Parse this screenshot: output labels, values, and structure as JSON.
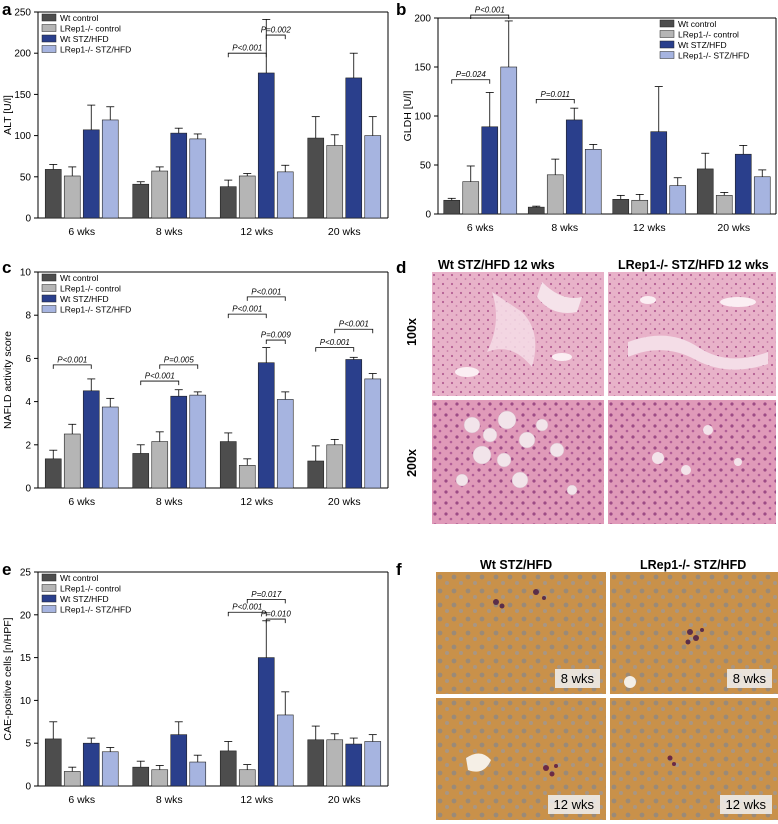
{
  "panels": {
    "a": "a",
    "b": "b",
    "c": "c",
    "d": "d",
    "e": "e",
    "f": "f"
  },
  "colors": {
    "wt_control": "#4d4d4d",
    "lrep_control": "#b5b5b5",
    "wt_stz": "#2a3f8c",
    "lrep_stz": "#a6b4e0",
    "he_bg": "#e9b8cc",
    "cae_bg": "#c99550"
  },
  "chart_data": [
    {
      "id": "a",
      "type": "bar",
      "categories": [
        "6 wks",
        "8 wks",
        "12 wks",
        "20 wks"
      ],
      "ylabel": "ALT [U/l]",
      "ylim": [
        0,
        250
      ],
      "yticks": [
        "0",
        "50",
        "100",
        "150",
        "200",
        "250"
      ],
      "legend_position": "top-left",
      "series": [
        {
          "name": "Wt control",
          "values": [
            59,
            41,
            38,
            97
          ],
          "err": [
            6,
            3,
            8,
            26
          ]
        },
        {
          "name": "LRep1-/- control",
          "values": [
            51,
            57,
            51,
            88
          ],
          "err": [
            11,
            5,
            3,
            13
          ]
        },
        {
          "name": "Wt STZ/HFD",
          "values": [
            107,
            103,
            176,
            170
          ],
          "err": [
            30,
            6,
            65,
            30
          ]
        },
        {
          "name": "LRep1-/- STZ/HFD",
          "values": [
            119,
            96,
            56,
            100
          ],
          "err": [
            16,
            6,
            8,
            23
          ]
        }
      ],
      "annotations": [
        {
          "text": "P<0.001",
          "cat": 2,
          "from": 0,
          "to": 2,
          "y": 200
        },
        {
          "text": "P=0.002",
          "cat": 2,
          "from": 2,
          "to": 3,
          "y": 222
        }
      ]
    },
    {
      "id": "b",
      "type": "bar",
      "categories": [
        "6 wks",
        "8 wks",
        "12 wks",
        "20 wks"
      ],
      "ylabel": "GLDH [U/l]",
      "ylim": [
        0,
        200
      ],
      "yticks": [
        "0",
        "50",
        "100",
        "150",
        "200"
      ],
      "legend_position": "top-right",
      "series": [
        {
          "name": "Wt control",
          "values": [
            14,
            7,
            15,
            46
          ],
          "err": [
            2,
            1,
            4,
            16
          ]
        },
        {
          "name": "LRep1-/- control",
          "values": [
            33,
            40,
            14,
            19
          ],
          "err": [
            16,
            16,
            6,
            3
          ]
        },
        {
          "name": "Wt STZ/HFD",
          "values": [
            89,
            96,
            84,
            61
          ],
          "err": [
            35,
            12,
            46,
            9
          ]
        },
        {
          "name": "LRep1-/- STZ/HFD",
          "values": [
            150,
            66,
            29,
            38
          ],
          "err": [
            47,
            5,
            8,
            7
          ]
        }
      ],
      "annotations": [
        {
          "text": "P=0.024",
          "cat": 0,
          "from": 0,
          "to": 2,
          "y": 137
        },
        {
          "text": "P<0.001",
          "cat": 0,
          "from": 1,
          "to": 3,
          "y": 203
        },
        {
          "text": "P=0.011",
          "cat": 1,
          "from": 0,
          "to": 2,
          "y": 117
        }
      ]
    },
    {
      "id": "c",
      "type": "bar",
      "categories": [
        "6 wks",
        "8 wks",
        "12 wks",
        "20 wks"
      ],
      "ylabel": "NAFLD activity score",
      "ylim": [
        0,
        10
      ],
      "yticks": [
        "0",
        "2",
        "4",
        "6",
        "8",
        "10"
      ],
      "legend_position": "top-left",
      "series": [
        {
          "name": "Wt control",
          "values": [
            1.35,
            1.6,
            2.15,
            1.25
          ],
          "err": [
            0.4,
            0.4,
            0.4,
            0.7
          ]
        },
        {
          "name": "LRep1-/- control",
          "values": [
            2.5,
            2.15,
            1.05,
            2.0
          ],
          "err": [
            0.45,
            0.45,
            0.3,
            0.25
          ]
        },
        {
          "name": "Wt STZ/HFD",
          "values": [
            4.5,
            4.25,
            5.8,
            5.95
          ],
          "err": [
            0.55,
            0.3,
            0.7,
            0.1
          ]
        },
        {
          "name": "LRep1-/- STZ/HFD",
          "values": [
            3.75,
            4.3,
            4.1,
            5.05
          ],
          "err": [
            0.4,
            0.15,
            0.35,
            0.25
          ]
        }
      ],
      "annotations": [
        {
          "text": "P<0.001",
          "cat": 0,
          "from": 0,
          "to": 2,
          "y": 5.7
        },
        {
          "text": "P<0.001",
          "cat": 1,
          "from": 0,
          "to": 2,
          "y": 4.95
        },
        {
          "text": "P=0.005",
          "cat": 1,
          "from": 1,
          "to": 3,
          "y": 5.7
        },
        {
          "text": "P<0.001",
          "cat": 2,
          "from": 0,
          "to": 2,
          "y": 8.05
        },
        {
          "text": "P=0.009",
          "cat": 2,
          "from": 2,
          "to": 3,
          "y": 6.85
        },
        {
          "text": "P<0.001",
          "cat": 2,
          "from": 1,
          "to": 3,
          "y": 8.85
        },
        {
          "text": "P<0.001",
          "cat": 3,
          "from": 0,
          "to": 2,
          "y": 6.5
        },
        {
          "text": "P<0.001",
          "cat": 3,
          "from": 1,
          "to": 3,
          "y": 7.35
        }
      ]
    },
    {
      "id": "e",
      "type": "bar",
      "categories": [
        "6 wks",
        "8 wks",
        "12 wks",
        "20 wks"
      ],
      "ylabel": "CAE-positive cells [n/HPF]",
      "ylim": [
        0,
        25
      ],
      "yticks": [
        "0",
        "5",
        "10",
        "15",
        "20",
        "25"
      ],
      "legend_position": "top-left",
      "series": [
        {
          "name": "Wt control",
          "values": [
            5.5,
            2.2,
            4.1,
            5.4
          ],
          "err": [
            2.0,
            0.7,
            1.1,
            1.6
          ]
        },
        {
          "name": "LRep1-/- control",
          "values": [
            1.7,
            1.9,
            1.9,
            5.4
          ],
          "err": [
            0.5,
            0.5,
            0.6,
            0.7
          ]
        },
        {
          "name": "Wt STZ/HFD",
          "values": [
            5.0,
            6.0,
            15.0,
            4.9
          ],
          "err": [
            0.6,
            1.5,
            4.3,
            0.7
          ]
        },
        {
          "name": "LRep1-/- STZ/HFD",
          "values": [
            4.0,
            2.8,
            8.3,
            5.2
          ],
          "err": [
            0.5,
            0.8,
            2.7,
            0.8
          ]
        }
      ],
      "annotations": [
        {
          "text": "P<0.001",
          "cat": 2,
          "from": 0,
          "to": 2,
          "y": 20.3
        },
        {
          "text": "P=0.010",
          "cat": 2,
          "from": 2,
          "to": 3,
          "y": 19.5
        },
        {
          "text": "P=0.017",
          "cat": 2,
          "from": 1,
          "to": 3,
          "y": 21.8
        }
      ]
    }
  ],
  "histology_d": {
    "col1_title": "Wt STZ/HFD 12 wks",
    "col2_title": "LRep1-/- STZ/HFD 12 wks",
    "row1_label": "100x",
    "row2_label": "200x"
  },
  "histology_f": {
    "col1_title": "Wt STZ/HFD",
    "col2_title": "LRep1-/- STZ/HFD",
    "row1_label": "8 wks",
    "row2_label": "12 wks"
  }
}
